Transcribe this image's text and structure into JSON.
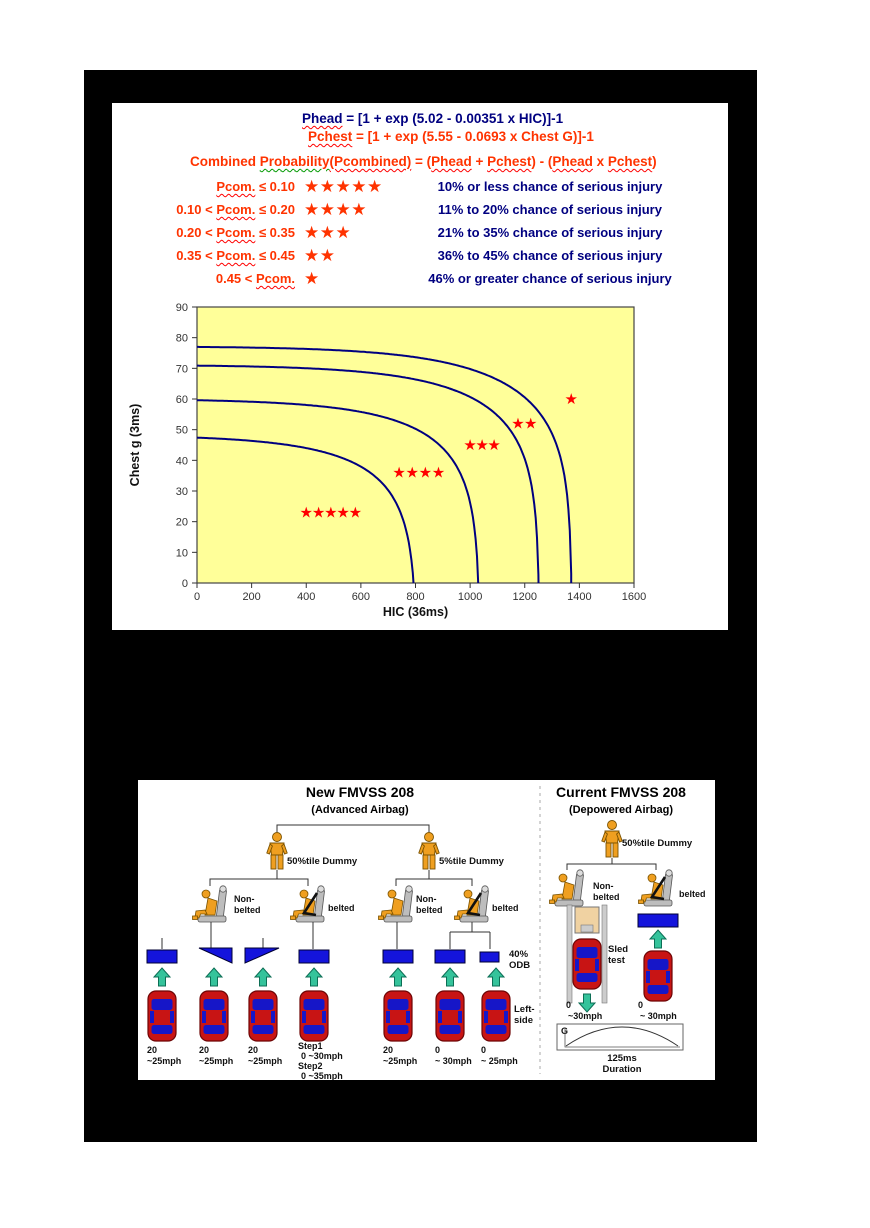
{
  "page": {
    "bg": "#ffffff",
    "slide_bg": "#000000"
  },
  "formulas": {
    "line1": [
      {
        "t": "Phead",
        "wavy": "red"
      },
      {
        "t": "   = [1 + exp (5.02 - 0.00351 x HIC)]-1"
      }
    ],
    "line2": [
      {
        "t": "Pchest",
        "wavy": "red"
      },
      {
        "t": " = [1 + exp (5.55 - 0.0693 x Chest G)]-1"
      }
    ],
    "line3": [
      {
        "t": "Combined "
      },
      {
        "t": "Probability",
        "wavy": "green"
      },
      {
        "t": "(Pcombined)",
        "wavy": "red"
      },
      {
        "t": " = ("
      },
      {
        "t": "Phead",
        "wavy": "red"
      },
      {
        "t": " + "
      },
      {
        "t": "Pchest",
        "wavy": "red"
      },
      {
        "t": ") - ("
      },
      {
        "t": "Phead",
        "wavy": "red"
      },
      {
        "t": " x "
      },
      {
        "t": "Pchest",
        "wavy": "red"
      },
      {
        "t": ")"
      }
    ],
    "line1_color": "#000080",
    "line2_color": "#FF3300",
    "line3_color": "#FF3300"
  },
  "rating_table": {
    "star_color": "#FF3300",
    "rows": [
      {
        "cond": [
          {
            "t": "Pcom.",
            "wavy": "red"
          },
          {
            "t": " ≤ 0.10"
          }
        ],
        "stars": 5,
        "desc": "10% or less chance of serious injury"
      },
      {
        "cond": [
          {
            "t": "0.10 < "
          },
          {
            "t": "Pcom.",
            "wavy": "red"
          },
          {
            "t": " ≤ 0.20"
          }
        ],
        "stars": 4,
        "desc": "11% to 20% chance of serious injury"
      },
      {
        "cond": [
          {
            "t": "0.20 < "
          },
          {
            "t": "Pcom.",
            "wavy": "red"
          },
          {
            "t": " ≤ 0.35"
          }
        ],
        "stars": 3,
        "desc": "21% to 35% chance of serious injury"
      },
      {
        "cond": [
          {
            "t": "0.35 < "
          },
          {
            "t": "Pcom.",
            "wavy": "red"
          },
          {
            "t": " ≤ 0.45"
          }
        ],
        "stars": 2,
        "desc": "36% to 45% chance of serious injury"
      },
      {
        "cond": [
          {
            "t": "0.45 < "
          },
          {
            "t": "Pcom.",
            "wavy": "red"
          }
        ],
        "stars": 1,
        "desc": "46% or greater chance of serious injury"
      }
    ]
  },
  "chart_data": {
    "type": "line",
    "title": "",
    "xlabel": "HIC (36ms)",
    "ylabel": "Chest g (3ms)",
    "xlim": [
      0,
      1600
    ],
    "ylim": [
      0,
      90
    ],
    "xticks": [
      0,
      200,
      400,
      600,
      800,
      1000,
      1200,
      1400,
      1600
    ],
    "yticks": [
      0,
      10,
      20,
      30,
      40,
      50,
      60,
      70,
      80,
      90
    ],
    "grid": false,
    "plot_bg": "#FFFF99",
    "curve_color": "#000080",
    "star_color": "#FF0000",
    "model": {
      "a": 5.02,
      "b": 0.00351,
      "c": 5.55,
      "d": 0.0693,
      "note": "Pcombined contours of Phead=1/(1+exp(a-b*HIC)), Pchest=1/(1+exp(c-d*G))"
    },
    "levels": [
      0.1,
      0.2,
      0.35,
      0.45
    ],
    "curve_endpooints": [
      {
        "level": 0.1,
        "G_at_HIC0": 47.4,
        "HIC_at_G0": 793
      },
      {
        "level": 0.2,
        "G_at_HIC0": 59.6,
        "HIC_at_G0": 1030
      },
      {
        "level": 0.35,
        "G_at_HIC0": 70.9,
        "HIC_at_G0": 1251
      },
      {
        "level": 0.45,
        "G_at_HIC0": 77.0,
        "HIC_at_G0": 1370
      }
    ],
    "star_groups": [
      {
        "stars": 5,
        "y": 23,
        "x": [
          400,
          445,
          490,
          535,
          580
        ]
      },
      {
        "stars": 4,
        "y": 36,
        "x": [
          740,
          788,
          836,
          884
        ]
      },
      {
        "stars": 3,
        "y": 45,
        "x": [
          1000,
          1044,
          1088
        ]
      },
      {
        "stars": 2,
        "y": 52,
        "x": [
          1175,
          1222
        ]
      },
      {
        "stars": 1,
        "y": 60,
        "x": [
          1370
        ]
      }
    ]
  },
  "fmvss": {
    "new": {
      "title": "New FMVSS 208",
      "subtitle": "(Advanced Airbag)",
      "dummy50": "50%tile Dummy",
      "dummy5": "5%tile Dummy",
      "nonbelted_l1": "Non-",
      "nonbelted_l2": "belted",
      "belted": "belted",
      "odb_l1": "40%",
      "odb_l2": "ODB",
      "leftside_l1": "Left-",
      "leftside_l2": "side",
      "tests": [
        {
          "speed": [
            "20",
            "~25mph"
          ]
        },
        {
          "speed": [
            "20",
            "~25mph"
          ]
        },
        {
          "speed": [
            "20",
            "~25mph"
          ]
        },
        {
          "speed": [
            "Step1",
            "0 ~30mph",
            "Step2",
            "0 ~35mph"
          ]
        },
        {
          "speed": [
            "20",
            "~25mph"
          ]
        },
        {
          "speed": [
            "0",
            "~ 30mph"
          ]
        },
        {
          "speed": [
            "0",
            "~ 25mph"
          ]
        }
      ]
    },
    "current": {
      "title": "Current FMVSS 208",
      "subtitle": "(Depowered Airbag)",
      "dummy50": "50%tile Dummy",
      "nonbelted_l1": "Non-",
      "nonbelted_l2": "belted",
      "belted": "belted",
      "sled_l1": "Sled",
      "sled_l2": "test",
      "sled_speed": [
        "0",
        "~30mph"
      ],
      "barrier_speed": [
        "0",
        "~ 30mph"
      ],
      "pulse_g": "G",
      "pulse_time": "125ms",
      "pulse_label": "Duration"
    }
  }
}
